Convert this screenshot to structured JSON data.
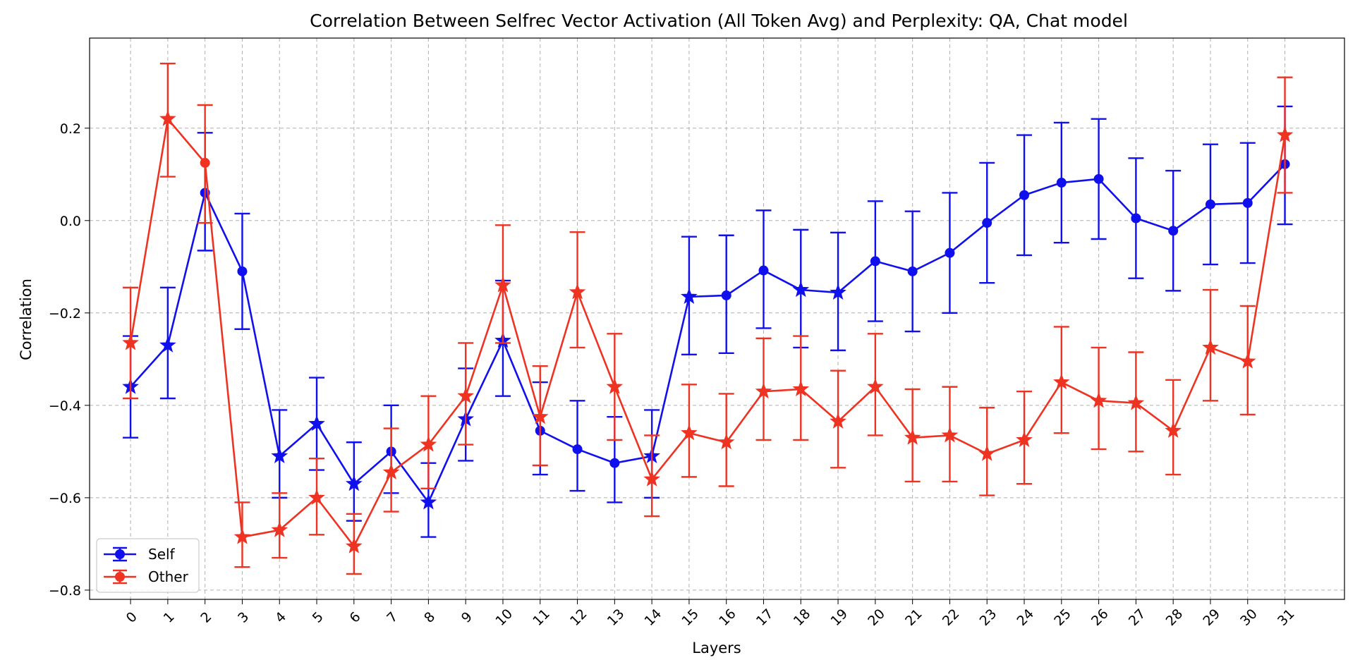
{
  "chart_data": {
    "type": "line",
    "title": "Correlation Between Selfrec Vector Activation (All Token Avg) and Perplexity: QA, Chat model",
    "xlabel": "Layers",
    "ylabel": "Correlation",
    "x": [
      0,
      1,
      2,
      3,
      4,
      5,
      6,
      7,
      8,
      9,
      10,
      11,
      12,
      13,
      14,
      15,
      16,
      17,
      18,
      19,
      20,
      21,
      22,
      23,
      24,
      25,
      26,
      27,
      28,
      29,
      30,
      31
    ],
    "xlim": [
      -1.1,
      32.6
    ],
    "ylim": [
      -0.82,
      0.395
    ],
    "yticks": [
      -0.8,
      -0.6,
      -0.4,
      -0.2,
      0.0,
      0.2
    ],
    "ytick_labels": [
      "−0.8",
      "−0.6",
      "−0.4",
      "−0.2",
      "0.0",
      "0.2"
    ],
    "grid": true,
    "legend_position": "lower-left",
    "series": [
      {
        "name": "Self",
        "color": "#1010ee",
        "values": [
          -0.36,
          -0.27,
          0.06,
          -0.11,
          -0.51,
          -0.44,
          -0.57,
          -0.5,
          -0.61,
          -0.43,
          -0.26,
          -0.455,
          -0.495,
          -0.525,
          -0.51,
          -0.165,
          -0.162,
          -0.108,
          -0.15,
          -0.156,
          -0.088,
          -0.11,
          -0.07,
          -0.005,
          0.055,
          0.082,
          0.09,
          0.005,
          -0.022,
          0.035,
          0.038,
          0.122
        ],
        "err_low": [
          0.11,
          0.115,
          0.125,
          0.125,
          0.09,
          0.1,
          0.08,
          0.09,
          0.075,
          0.09,
          0.12,
          0.095,
          0.09,
          0.085,
          0.09,
          0.125,
          0.125,
          0.125,
          0.125,
          0.125,
          0.13,
          0.13,
          0.13,
          0.13,
          0.13,
          0.13,
          0.13,
          0.13,
          0.13,
          0.13,
          0.13,
          0.13
        ],
        "err_high": [
          0.11,
          0.125,
          0.13,
          0.125,
          0.1,
          0.1,
          0.09,
          0.1,
          0.085,
          0.11,
          0.13,
          0.105,
          0.105,
          0.1,
          0.1,
          0.13,
          0.13,
          0.13,
          0.13,
          0.13,
          0.13,
          0.13,
          0.13,
          0.13,
          0.13,
          0.13,
          0.13,
          0.13,
          0.13,
          0.13,
          0.13,
          0.125
        ],
        "markers": [
          "star",
          "star",
          "circle",
          "circle",
          "star",
          "star",
          "star",
          "circle",
          "star",
          "star",
          "star",
          "circle",
          "circle",
          "circle",
          "star",
          "star",
          "circle",
          "circle",
          "star",
          "star",
          "circle",
          "circle",
          "circle",
          "circle",
          "circle",
          "circle",
          "circle",
          "circle",
          "circle",
          "circle",
          "circle",
          "circle"
        ]
      },
      {
        "name": "Other",
        "color": "#ee3322",
        "values": [
          -0.265,
          0.22,
          0.125,
          -0.685,
          -0.67,
          -0.6,
          -0.705,
          -0.545,
          -0.485,
          -0.38,
          -0.14,
          -0.425,
          -0.155,
          -0.36,
          -0.56,
          -0.46,
          -0.48,
          -0.37,
          -0.365,
          -0.435,
          -0.36,
          -0.47,
          -0.465,
          -0.505,
          -0.475,
          -0.35,
          -0.39,
          -0.395,
          -0.455,
          -0.275,
          -0.305,
          0.185
        ],
        "err_low": [
          0.12,
          0.125,
          0.13,
          0.065,
          0.06,
          0.08,
          0.06,
          0.085,
          0.095,
          0.105,
          0.125,
          0.105,
          0.12,
          0.115,
          0.08,
          0.095,
          0.095,
          0.105,
          0.11,
          0.1,
          0.105,
          0.095,
          0.1,
          0.09,
          0.095,
          0.11,
          0.105,
          0.105,
          0.095,
          0.115,
          0.115,
          0.125
        ],
        "err_high": [
          0.12,
          0.12,
          0.125,
          0.075,
          0.08,
          0.085,
          0.07,
          0.095,
          0.105,
          0.115,
          0.13,
          0.11,
          0.13,
          0.115,
          0.095,
          0.105,
          0.105,
          0.115,
          0.115,
          0.11,
          0.115,
          0.105,
          0.105,
          0.1,
          0.105,
          0.12,
          0.115,
          0.11,
          0.11,
          0.125,
          0.12,
          0.125
        ],
        "markers": [
          "star",
          "star",
          "circle",
          "star",
          "star",
          "star",
          "star",
          "star",
          "star",
          "star",
          "star",
          "star",
          "star",
          "star",
          "star",
          "star",
          "star",
          "star",
          "star",
          "star",
          "star",
          "star",
          "star",
          "star",
          "star",
          "star",
          "star",
          "star",
          "star",
          "star",
          "star",
          "star"
        ]
      }
    ]
  }
}
